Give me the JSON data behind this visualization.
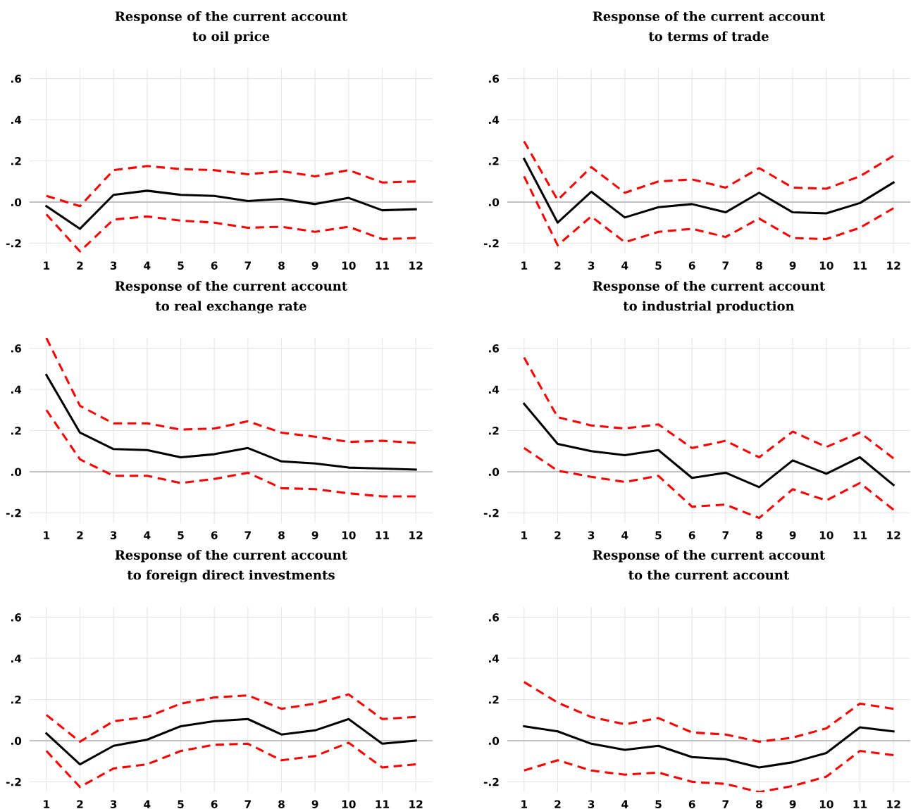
{
  "chart_data": [
    {
      "type": "line",
      "title": "Response of the current account\nto oil price",
      "x": [
        1,
        2,
        3,
        4,
        5,
        6,
        7,
        8,
        9,
        10,
        11,
        12
      ],
      "xlim": [
        0.5,
        12.5
      ],
      "xticks": [
        1,
        2,
        3,
        4,
        5,
        6,
        7,
        8,
        9,
        10,
        11,
        12
      ],
      "ylim": [
        -0.25,
        0.65
      ],
      "yticks": [
        {
          "value": -0.2,
          "label": "-.2"
        },
        {
          "value": 0,
          "label": ".0"
        },
        {
          "value": 0.2,
          "label": ".2"
        },
        {
          "value": 0.4,
          "label": ".4"
        },
        {
          "value": 0.6,
          "label": ".6"
        }
      ],
      "grid": true,
      "legend": false,
      "ref_lines": [
        {
          "axis": "y",
          "value": 0,
          "color": "#b0b0b0"
        }
      ],
      "series": [
        {
          "color": "#ff0000",
          "line_style": "dashed",
          "values": [
            0.03,
            -0.02,
            0.155,
            0.175,
            0.16,
            0.155,
            0.135,
            0.15,
            0.125,
            0.155,
            0.095,
            0.1
          ]
        },
        {
          "color": "#000000",
          "line_style": "solid",
          "values": [
            -0.02,
            -0.13,
            0.035,
            0.055,
            0.035,
            0.03,
            0.005,
            0.015,
            -0.01,
            0.02,
            -0.04,
            -0.035
          ]
        },
        {
          "color": "#ff0000",
          "line_style": "dashed",
          "values": [
            -0.06,
            -0.24,
            -0.085,
            -0.07,
            -0.09,
            -0.1,
            -0.125,
            -0.12,
            -0.145,
            -0.12,
            -0.18,
            -0.175
          ]
        }
      ]
    },
    {
      "type": "line",
      "title": "Response of the current account\nto terms of trade",
      "x": [
        1,
        2,
        3,
        4,
        5,
        6,
        7,
        8,
        9,
        10,
        11,
        12
      ],
      "xlim": [
        0.5,
        12.5
      ],
      "xticks": [
        1,
        2,
        3,
        4,
        5,
        6,
        7,
        8,
        9,
        10,
        11,
        12
      ],
      "ylim": [
        -0.25,
        0.65
      ],
      "yticks": [
        {
          "value": -0.2,
          "label": "-.2"
        },
        {
          "value": 0,
          "label": ".0"
        },
        {
          "value": 0.2,
          "label": ".2"
        },
        {
          "value": 0.4,
          "label": ".4"
        },
        {
          "value": 0.6,
          "label": ".6"
        }
      ],
      "grid": true,
      "legend": false,
      "ref_lines": [
        {
          "axis": "y",
          "value": 0,
          "color": "#b0b0b0"
        }
      ],
      "series": [
        {
          "color": "#ff0000",
          "line_style": "dashed",
          "values": [
            0.295,
            0.01,
            0.17,
            0.045,
            0.1,
            0.11,
            0.07,
            0.165,
            0.07,
            0.065,
            0.125,
            0.225
          ]
        },
        {
          "color": "#000000",
          "line_style": "solid",
          "values": [
            0.21,
            -0.1,
            0.05,
            -0.075,
            -0.025,
            -0.01,
            -0.05,
            0.045,
            -0.05,
            -0.055,
            -0.005,
            0.095
          ]
        },
        {
          "color": "#ff0000",
          "line_style": "dashed",
          "values": [
            0.125,
            -0.21,
            -0.07,
            -0.195,
            -0.145,
            -0.13,
            -0.17,
            -0.08,
            -0.175,
            -0.18,
            -0.125,
            -0.03
          ]
        }
      ]
    },
    {
      "type": "line",
      "title": "Response of the current account\nto real exchange rate",
      "x": [
        1,
        2,
        3,
        4,
        5,
        6,
        7,
        8,
        9,
        10,
        11,
        12
      ],
      "xlim": [
        0.5,
        12.5
      ],
      "xticks": [
        1,
        2,
        3,
        4,
        5,
        6,
        7,
        8,
        9,
        10,
        11,
        12
      ],
      "ylim": [
        -0.25,
        0.65
      ],
      "yticks": [
        {
          "value": -0.2,
          "label": "-.2"
        },
        {
          "value": 0,
          "label": ".0"
        },
        {
          "value": 0.2,
          "label": ".2"
        },
        {
          "value": 0.4,
          "label": ".4"
        },
        {
          "value": 0.6,
          "label": ".6"
        }
      ],
      "grid": true,
      "legend": false,
      "ref_lines": [
        {
          "axis": "y",
          "value": 0,
          "color": "#b0b0b0"
        }
      ],
      "series": [
        {
          "color": "#ff0000",
          "line_style": "dashed",
          "values": [
            0.65,
            0.32,
            0.235,
            0.235,
            0.205,
            0.21,
            0.245,
            0.19,
            0.17,
            0.145,
            0.15,
            0.14
          ]
        },
        {
          "color": "#000000",
          "line_style": "solid",
          "values": [
            0.47,
            0.19,
            0.11,
            0.105,
            0.07,
            0.085,
            0.115,
            0.05,
            0.04,
            0.02,
            0.015,
            0.01
          ]
        },
        {
          "color": "#ff0000",
          "line_style": "dashed",
          "values": [
            0.3,
            0.06,
            -0.02,
            -0.02,
            -0.055,
            -0.035,
            -0.005,
            -0.08,
            -0.085,
            -0.105,
            -0.12,
            -0.12
          ]
        }
      ]
    },
    {
      "type": "line",
      "title": "Response of the current account\nto industrial production",
      "x": [
        1,
        2,
        3,
        4,
        5,
        6,
        7,
        8,
        9,
        10,
        11,
        12
      ],
      "xlim": [
        0.5,
        12.5
      ],
      "xticks": [
        1,
        2,
        3,
        4,
        5,
        6,
        7,
        8,
        9,
        10,
        11,
        12
      ],
      "ylim": [
        -0.25,
        0.65
      ],
      "yticks": [
        {
          "value": -0.2,
          "label": "-.2"
        },
        {
          "value": 0,
          "label": ".0"
        },
        {
          "value": 0.2,
          "label": ".2"
        },
        {
          "value": 0.4,
          "label": ".4"
        },
        {
          "value": 0.6,
          "label": ".6"
        }
      ],
      "grid": true,
      "legend": false,
      "ref_lines": [
        {
          "axis": "y",
          "value": 0,
          "color": "#b0b0b0"
        }
      ],
      "series": [
        {
          "color": "#ff0000",
          "line_style": "dashed",
          "values": [
            0.555,
            0.265,
            0.225,
            0.21,
            0.23,
            0.115,
            0.15,
            0.07,
            0.195,
            0.12,
            0.19,
            0.065
          ]
        },
        {
          "color": "#000000",
          "line_style": "solid",
          "values": [
            0.33,
            0.135,
            0.1,
            0.08,
            0.105,
            -0.03,
            -0.005,
            -0.075,
            0.055,
            -0.01,
            0.07,
            -0.065
          ]
        },
        {
          "color": "#ff0000",
          "line_style": "dashed",
          "values": [
            0.115,
            0.005,
            -0.025,
            -0.05,
            -0.02,
            -0.17,
            -0.16,
            -0.225,
            -0.085,
            -0.14,
            -0.055,
            -0.185
          ]
        }
      ]
    },
    {
      "type": "line",
      "title": "Response of the current account\nto foreign direct investments",
      "x": [
        1,
        2,
        3,
        4,
        5,
        6,
        7,
        8,
        9,
        10,
        11,
        12
      ],
      "xlim": [
        0.5,
        12.5
      ],
      "xticks": [
        1,
        2,
        3,
        4,
        5,
        6,
        7,
        8,
        9,
        10,
        11,
        12
      ],
      "ylim": [
        -0.25,
        0.65
      ],
      "yticks": [
        {
          "value": -0.2,
          "label": "-.2"
        },
        {
          "value": 0,
          "label": ".0"
        },
        {
          "value": 0.2,
          "label": ".2"
        },
        {
          "value": 0.4,
          "label": ".4"
        },
        {
          "value": 0.6,
          "label": ".6"
        }
      ],
      "grid": true,
      "legend": false,
      "ref_lines": [
        {
          "axis": "y",
          "value": 0,
          "color": "#b0b0b0"
        }
      ],
      "series": [
        {
          "color": "#ff0000",
          "line_style": "dashed",
          "values": [
            0.125,
            -0.005,
            0.095,
            0.115,
            0.18,
            0.21,
            0.22,
            0.155,
            0.18,
            0.225,
            0.105,
            0.115
          ]
        },
        {
          "color": "#000000",
          "line_style": "solid",
          "values": [
            0.035,
            -0.115,
            -0.025,
            0.005,
            0.07,
            0.095,
            0.105,
            0.03,
            0.05,
            0.105,
            -0.015,
            0.0
          ]
        },
        {
          "color": "#ff0000",
          "line_style": "dashed",
          "values": [
            -0.05,
            -0.225,
            -0.135,
            -0.115,
            -0.05,
            -0.02,
            -0.015,
            -0.095,
            -0.075,
            -0.01,
            -0.13,
            -0.115
          ]
        }
      ]
    },
    {
      "type": "line",
      "title": "Response of the current account\nto the current account",
      "x": [
        1,
        2,
        3,
        4,
        5,
        6,
        7,
        8,
        9,
        10,
        11,
        12
      ],
      "xlim": [
        0.5,
        12.5
      ],
      "xticks": [
        1,
        2,
        3,
        4,
        5,
        6,
        7,
        8,
        9,
        10,
        11,
        12
      ],
      "ylim": [
        -0.25,
        0.65
      ],
      "yticks": [
        {
          "value": -0.2,
          "label": "-.2"
        },
        {
          "value": 0,
          "label": ".0"
        },
        {
          "value": 0.2,
          "label": ".2"
        },
        {
          "value": 0.4,
          "label": ".4"
        },
        {
          "value": 0.6,
          "label": ".6"
        }
      ],
      "grid": true,
      "legend": false,
      "ref_lines": [
        {
          "axis": "y",
          "value": 0,
          "color": "#b0b0b0"
        }
      ],
      "series": [
        {
          "color": "#ff0000",
          "line_style": "dashed",
          "values": [
            0.285,
            0.185,
            0.115,
            0.08,
            0.11,
            0.04,
            0.03,
            -0.005,
            0.015,
            0.06,
            0.18,
            0.155
          ]
        },
        {
          "color": "#000000",
          "line_style": "solid",
          "values": [
            0.07,
            0.045,
            -0.015,
            -0.045,
            -0.025,
            -0.08,
            -0.09,
            -0.13,
            -0.105,
            -0.06,
            0.065,
            0.045
          ]
        },
        {
          "color": "#ff0000",
          "line_style": "dashed",
          "values": [
            -0.145,
            -0.095,
            -0.145,
            -0.165,
            -0.155,
            -0.2,
            -0.21,
            -0.25,
            -0.22,
            -0.175,
            -0.05,
            -0.07
          ]
        }
      ]
    }
  ]
}
